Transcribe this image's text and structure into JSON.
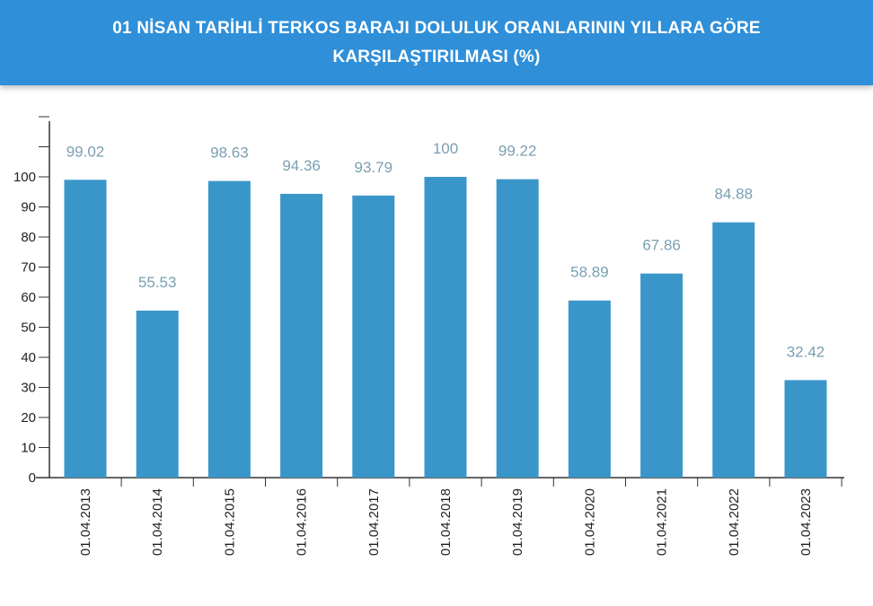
{
  "header": {
    "title_line1": "01 NİSAN TARİHLİ TERKOS BARAJI DOLULUK ORANLARININ YILLARA GÖRE",
    "title_line2": "KARŞILAŞTIRILMASI (%)"
  },
  "chart_data": {
    "type": "bar",
    "title": "01 NİSAN TARİHLİ TERKOS BARAJI DOLULUK ORANLARININ YILLARA GÖRE KARŞILAŞTIRILMASI (%)",
    "categories": [
      "01.04.2013",
      "01.04.2014",
      "01.04.2015",
      "01.04.2016",
      "01.04.2017",
      "01.04.2018",
      "01.04.2019",
      "01.04.2020",
      "01.04.2021",
      "01.04.2022",
      "01.04.2023"
    ],
    "values": [
      99.02,
      55.53,
      98.63,
      94.36,
      93.79,
      100,
      99.22,
      58.89,
      67.86,
      84.88,
      32.42
    ],
    "value_labels": [
      "99.02",
      "55.53",
      "98.63",
      "94.36",
      "93.79",
      "100",
      "99.22",
      "58.89",
      "67.86",
      "84.88",
      "32.42"
    ],
    "yticks": [
      "0",
      "10",
      "20",
      "30",
      "40",
      "50",
      "60",
      "70",
      "80",
      "90",
      "100"
    ],
    "ylim": [
      0,
      115
    ],
    "bar_color": "#3a96c9",
    "label_color": "#7a9fb3",
    "grid": false
  }
}
